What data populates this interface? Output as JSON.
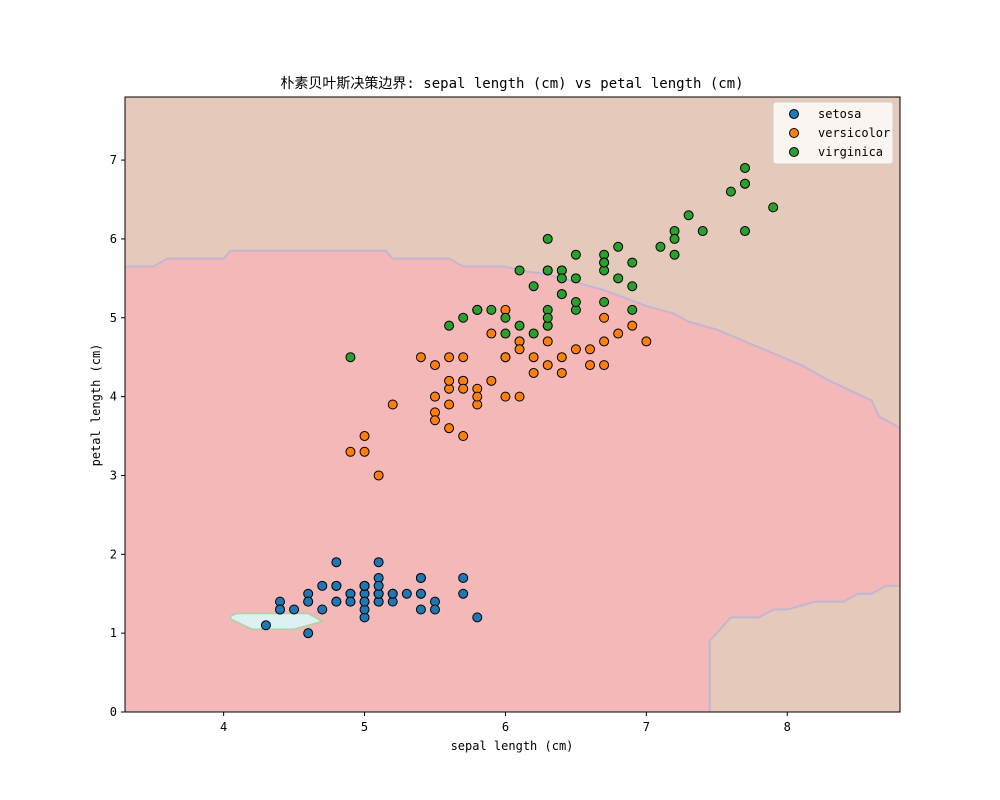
{
  "chart_data": {
    "type": "scatter",
    "title": "朴素贝叶斯决策边界: sepal length (cm) vs petal length (cm)",
    "xlabel": "sepal length (cm)",
    "ylabel": "petal length (cm)",
    "xlim": [
      3.3,
      8.8
    ],
    "ylim": [
      0,
      7.8
    ],
    "xticks": [
      4,
      5,
      6,
      7,
      8
    ],
    "yticks": [
      0,
      1,
      2,
      3,
      4,
      5,
      6,
      7
    ],
    "grid": false,
    "legend_position": "top-right",
    "regions": {
      "setosa": "#dff0f2",
      "versicolor": "#f4b8b8",
      "virginica": "#e5cabb",
      "contour_line": "#c2b6d4"
    },
    "series": [
      {
        "name": "setosa",
        "color": "#1f77b4",
        "points": [
          [
            5.1,
            1.4
          ],
          [
            4.9,
            1.4
          ],
          [
            4.7,
            1.3
          ],
          [
            4.6,
            1.5
          ],
          [
            5.0,
            1.4
          ],
          [
            5.4,
            1.7
          ],
          [
            4.6,
            1.4
          ],
          [
            5.0,
            1.5
          ],
          [
            4.4,
            1.4
          ],
          [
            4.9,
            1.5
          ],
          [
            5.4,
            1.5
          ],
          [
            4.8,
            1.6
          ],
          [
            4.8,
            1.4
          ],
          [
            4.3,
            1.1
          ],
          [
            5.8,
            1.2
          ],
          [
            5.7,
            1.5
          ],
          [
            5.4,
            1.3
          ],
          [
            5.1,
            1.4
          ],
          [
            5.7,
            1.7
          ],
          [
            5.1,
            1.5
          ],
          [
            5.4,
            1.7
          ],
          [
            5.1,
            1.5
          ],
          [
            4.6,
            1.0
          ],
          [
            5.1,
            1.7
          ],
          [
            4.8,
            1.9
          ],
          [
            5.0,
            1.6
          ],
          [
            5.0,
            1.6
          ],
          [
            5.2,
            1.5
          ],
          [
            5.2,
            1.4
          ],
          [
            4.7,
            1.6
          ],
          [
            4.8,
            1.6
          ],
          [
            5.4,
            1.5
          ],
          [
            5.2,
            1.5
          ],
          [
            5.5,
            1.4
          ],
          [
            4.9,
            1.5
          ],
          [
            5.0,
            1.2
          ],
          [
            5.5,
            1.3
          ],
          [
            4.9,
            1.4
          ],
          [
            4.4,
            1.3
          ],
          [
            5.1,
            1.5
          ],
          [
            5.0,
            1.3
          ],
          [
            4.5,
            1.3
          ],
          [
            4.4,
            1.3
          ],
          [
            5.0,
            1.6
          ],
          [
            5.1,
            1.9
          ],
          [
            4.8,
            1.4
          ],
          [
            5.1,
            1.6
          ],
          [
            4.6,
            1.4
          ],
          [
            5.3,
            1.5
          ],
          [
            5.0,
            1.4
          ]
        ]
      },
      {
        "name": "versicolor",
        "color": "#ff7f0e",
        "points": [
          [
            7.0,
            4.7
          ],
          [
            6.4,
            4.5
          ],
          [
            6.9,
            4.9
          ],
          [
            5.5,
            4.0
          ],
          [
            6.5,
            4.6
          ],
          [
            5.7,
            4.5
          ],
          [
            6.3,
            4.7
          ],
          [
            4.9,
            3.3
          ],
          [
            6.6,
            4.6
          ],
          [
            5.2,
            3.9
          ],
          [
            5.0,
            3.5
          ],
          [
            5.9,
            4.2
          ],
          [
            6.0,
            4.0
          ],
          [
            6.1,
            4.7
          ],
          [
            5.6,
            3.6
          ],
          [
            6.7,
            4.4
          ],
          [
            5.6,
            4.5
          ],
          [
            5.8,
            4.1
          ],
          [
            6.2,
            4.5
          ],
          [
            5.6,
            3.9
          ],
          [
            5.9,
            4.8
          ],
          [
            6.1,
            4.0
          ],
          [
            6.3,
            4.9
          ],
          [
            6.1,
            4.7
          ],
          [
            6.4,
            4.3
          ],
          [
            6.6,
            4.4
          ],
          [
            6.8,
            4.8
          ],
          [
            6.7,
            5.0
          ],
          [
            6.0,
            4.5
          ],
          [
            5.7,
            3.5
          ],
          [
            5.5,
            3.8
          ],
          [
            5.5,
            3.7
          ],
          [
            5.8,
            3.9
          ],
          [
            6.0,
            5.1
          ],
          [
            5.4,
            4.5
          ],
          [
            6.0,
            4.5
          ],
          [
            6.7,
            4.7
          ],
          [
            6.3,
            4.4
          ],
          [
            5.6,
            4.1
          ],
          [
            5.5,
            4.0
          ],
          [
            5.5,
            4.4
          ],
          [
            6.1,
            4.6
          ],
          [
            5.8,
            4.0
          ],
          [
            5.0,
            3.3
          ],
          [
            5.6,
            4.2
          ],
          [
            5.7,
            4.2
          ],
          [
            5.7,
            4.2
          ],
          [
            6.2,
            4.3
          ],
          [
            5.1,
            3.0
          ],
          [
            5.7,
            4.1
          ]
        ]
      },
      {
        "name": "virginica",
        "color": "#2ca02c",
        "points": [
          [
            6.3,
            6.0
          ],
          [
            5.8,
            5.1
          ],
          [
            7.1,
            5.9
          ],
          [
            6.3,
            5.6
          ],
          [
            6.5,
            5.8
          ],
          [
            7.6,
            6.6
          ],
          [
            4.9,
            4.5
          ],
          [
            7.3,
            6.3
          ],
          [
            6.7,
            5.8
          ],
          [
            7.2,
            6.1
          ],
          [
            6.5,
            5.1
          ],
          [
            6.4,
            5.3
          ],
          [
            6.8,
            5.5
          ],
          [
            5.7,
            5.0
          ],
          [
            5.8,
            5.1
          ],
          [
            6.4,
            5.3
          ],
          [
            6.5,
            5.5
          ],
          [
            7.7,
            6.7
          ],
          [
            7.7,
            6.9
          ],
          [
            6.0,
            5.0
          ],
          [
            6.9,
            5.7
          ],
          [
            5.6,
            4.9
          ],
          [
            7.7,
            6.7
          ],
          [
            6.3,
            4.9
          ],
          [
            6.7,
            5.7
          ],
          [
            7.2,
            6.0
          ],
          [
            6.2,
            4.8
          ],
          [
            6.1,
            4.9
          ],
          [
            6.4,
            5.6
          ],
          [
            7.2,
            5.8
          ],
          [
            7.4,
            6.1
          ],
          [
            7.9,
            6.4
          ],
          [
            6.4,
            5.6
          ],
          [
            6.3,
            5.1
          ],
          [
            6.1,
            5.6
          ],
          [
            7.7,
            6.1
          ],
          [
            6.3,
            5.6
          ],
          [
            6.4,
            5.5
          ],
          [
            6.0,
            4.8
          ],
          [
            6.9,
            5.4
          ],
          [
            6.7,
            5.6
          ],
          [
            6.9,
            5.1
          ],
          [
            5.8,
            5.1
          ],
          [
            6.8,
            5.9
          ],
          [
            6.7,
            5.7
          ],
          [
            6.7,
            5.2
          ],
          [
            6.3,
            5.0
          ],
          [
            6.5,
            5.2
          ],
          [
            6.2,
            5.4
          ],
          [
            5.9,
            5.1
          ]
        ]
      }
    ]
  }
}
